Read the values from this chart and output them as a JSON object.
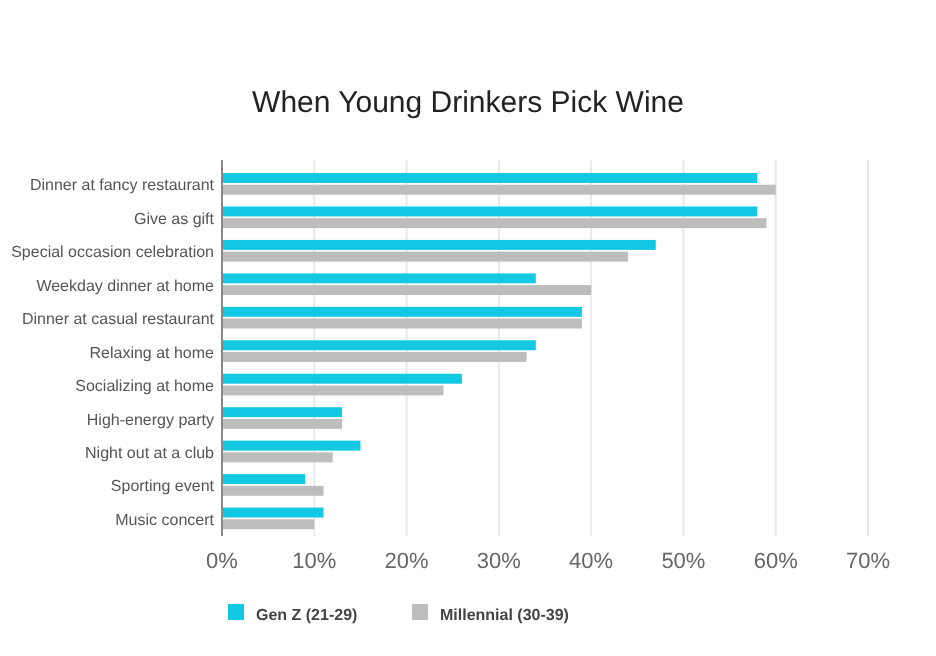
{
  "chart_data": {
    "type": "bar",
    "orientation": "horizontal",
    "title": "When Young Drinkers Pick Wine",
    "categories": [
      "Dinner at fancy restaurant",
      "Give as gift",
      "Special occasion celebration",
      "Weekday dinner at home",
      "Dinner at casual restaurant",
      "Relaxing at home",
      "Socializing at home",
      "High-energy party",
      "Night out at a club",
      "Sporting event",
      "Music concert"
    ],
    "series": [
      {
        "name": "Gen Z (21-29)",
        "color": "#12c8e2",
        "values": [
          58,
          58,
          47,
          34,
          39,
          34,
          26,
          13,
          15,
          9,
          11
        ]
      },
      {
        "name": "Millennial (30-39)",
        "color": "#bdbdbd",
        "values": [
          60,
          59,
          44,
          40,
          39,
          33,
          24,
          13,
          12,
          11,
          10
        ]
      }
    ],
    "xlim": [
      0,
      70
    ],
    "xticks": [
      {
        "value": 0,
        "label": "0%"
      },
      {
        "value": 10,
        "label": "10%"
      },
      {
        "value": 20,
        "label": "20%"
      },
      {
        "value": 30,
        "label": "30%"
      },
      {
        "value": 40,
        "label": "40%"
      },
      {
        "value": 50,
        "label": "50%"
      },
      {
        "value": 60,
        "label": "60%"
      },
      {
        "value": 70,
        "label": "70%"
      }
    ],
    "grid": "x",
    "legend": "bottom"
  }
}
